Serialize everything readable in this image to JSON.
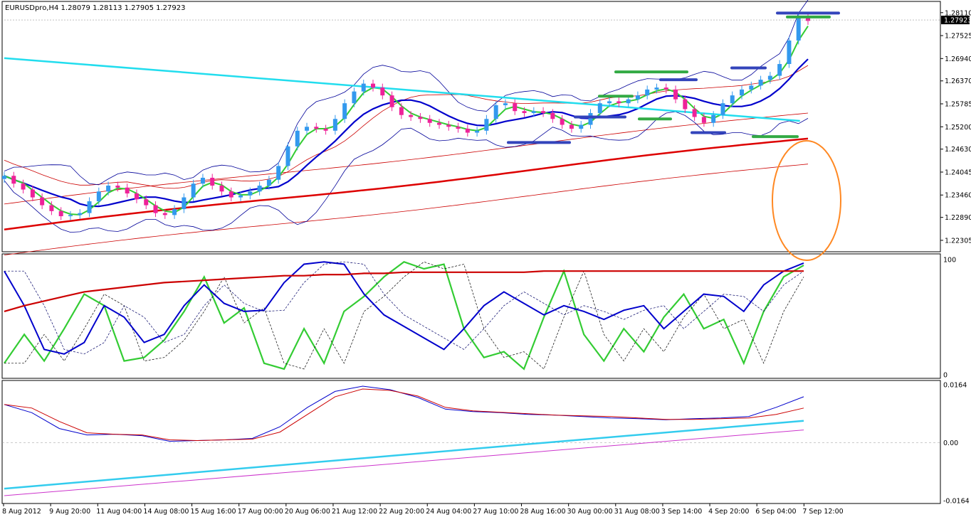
{
  "window": {
    "header_text": "EURUSDpro,H4  1.28079 1.28113 1.27905 1.27923"
  },
  "chart_data": [
    {
      "type": "candlestick",
      "panel": "main",
      "symbol": "EURUSDpro",
      "timeframe": "H4",
      "ohlc_last": {
        "open": 1.28079,
        "high": 1.28113,
        "low": 1.27905,
        "close": 1.27923
      },
      "current_price_label": "1.27923",
      "ylim": [
        1.2205,
        1.2836
      ],
      "y_ticks": [
        "1.28110",
        "1.27525",
        "1.26940",
        "1.26370",
        "1.25785",
        "1.25200",
        "1.24630",
        "1.24045",
        "1.23460",
        "1.22890",
        "1.22305"
      ],
      "x_ticks": [
        "8 Aug 2012",
        "9 Aug 20:00",
        "11 Aug 04:00",
        "14 Aug 08:00",
        "15 Aug 16:00",
        "17 Aug 00:00",
        "20 Aug 06:00",
        "21 Aug 12:00",
        "22 Aug 20:00",
        "24 Aug 04:00",
        "27 Aug 10:00",
        "28 Aug 16:00",
        "30 Aug 00:00",
        "31 Aug 08:00",
        "3 Sep 14:00",
        "4 Sep 20:00",
        "6 Sep 04:00",
        "7 Sep 12:00"
      ],
      "close_path": [
        1.2395,
        1.2375,
        1.236,
        1.234,
        1.232,
        1.2305,
        1.2292,
        1.2295,
        1.23,
        1.233,
        1.2355,
        1.237,
        1.2365,
        1.235,
        1.2335,
        1.232,
        1.23,
        1.2295,
        1.231,
        1.234,
        1.2375,
        1.239,
        1.237,
        1.2355,
        1.234,
        1.2345,
        1.2355,
        1.237,
        1.2385,
        1.242,
        1.247,
        1.251,
        1.252,
        1.2515,
        1.251,
        1.254,
        1.258,
        1.261,
        1.263,
        1.262,
        1.26,
        1.257,
        1.255,
        1.2545,
        1.254,
        1.253,
        1.2525,
        1.252,
        1.2515,
        1.2505,
        1.251,
        1.254,
        1.2575,
        1.258,
        1.256,
        1.2555,
        1.256,
        1.2555,
        1.254,
        1.2525,
        1.2515,
        1.2525,
        1.2555,
        1.258,
        1.2585,
        1.258,
        1.259,
        1.26,
        1.2615,
        1.262,
        1.2615,
        1.259,
        1.2565,
        1.2545,
        1.253,
        1.255,
        1.258,
        1.26,
        1.2615,
        1.2625,
        1.264,
        1.265,
        1.268,
        1.274,
        1.28,
        1.279
      ],
      "trend_line": [
        [
          0,
          1.2695
        ],
        [
          72,
          1.2535
        ]
      ],
      "support_resistance_levels": [
        1.281,
        1.28,
        1.267,
        1.266,
        1.264,
        1.2598,
        1.2545,
        1.254,
        1.2505,
        1.2495,
        1.248
      ]
    },
    {
      "type": "line",
      "panel": "oscillator",
      "ylim": [
        0,
        100
      ],
      "y_ticks": [
        "100",
        "0"
      ],
      "series": [
        {
          "color": "#33cc33",
          "values": [
            10,
            35,
            12,
            40,
            70,
            60,
            12,
            15,
            30,
            55,
            85,
            45,
            58,
            10,
            5,
            40,
            10,
            55,
            68,
            85,
            98,
            92,
            96,
            40,
            15,
            20,
            5,
            50,
            90,
            35,
            12,
            40,
            20,
            50,
            70,
            40,
            48,
            10,
            55,
            85,
            95
          ]
        },
        {
          "color": "#0000cc",
          "values": [
            90,
            60,
            22,
            18,
            28,
            60,
            50,
            28,
            35,
            60,
            78,
            62,
            55,
            56,
            80,
            96,
            98,
            96,
            70,
            52,
            42,
            32,
            22,
            40,
            60,
            72,
            62,
            52,
            60,
            55,
            48,
            56,
            60,
            40,
            55,
            70,
            68,
            55,
            78,
            90,
            97
          ]
        },
        {
          "color": "#cc0000",
          "values": [
            55,
            60,
            64,
            68,
            72,
            74,
            76,
            78,
            80,
            81,
            82,
            83,
            84,
            85,
            86,
            86,
            87,
            87,
            88,
            88,
            89,
            89,
            89,
            89,
            89,
            89,
            89,
            90,
            90,
            90,
            90,
            90,
            90,
            90,
            90,
            90,
            90,
            90,
            90,
            90,
            90
          ]
        }
      ]
    },
    {
      "type": "line",
      "panel": "macd",
      "ylim": [
        -0.0164,
        0.0164
      ],
      "y_ticks": [
        "0.0164",
        "0.00",
        "-0.0164"
      ],
      "series": [
        {
          "color": "#0000cc",
          "values": [
            0.0108,
            0.0085,
            0.004,
            0.0022,
            0.0024,
            0.002,
            0.0004,
            0.0006,
            0.0008,
            0.0012,
            0.0045,
            0.01,
            0.0145,
            0.016,
            0.015,
            0.0128,
            0.0095,
            0.0088,
            0.0085,
            0.008,
            0.0078,
            0.0074,
            0.007,
            0.0068,
            0.0065,
            0.0068,
            0.007,
            0.0074,
            0.01,
            0.013
          ]
        },
        {
          "color": "#cc0000",
          "values": [
            0.0108,
            0.0098,
            0.006,
            0.0028,
            0.0024,
            0.0022,
            0.0008,
            0.0006,
            0.0008,
            0.001,
            0.003,
            0.008,
            0.013,
            0.0152,
            0.0148,
            0.0132,
            0.01,
            0.009,
            0.0086,
            0.0082,
            0.0078,
            0.0076,
            0.0074,
            0.007,
            0.0066,
            0.0066,
            0.0068,
            0.007,
            0.008,
            0.0098
          ]
        },
        {
          "color": "#33ccee",
          "values": [
            -0.013,
            0.0062
          ]
        },
        {
          "color": "#cc33cc",
          "values": [
            -0.015,
            0.0036
          ]
        }
      ]
    }
  ]
}
